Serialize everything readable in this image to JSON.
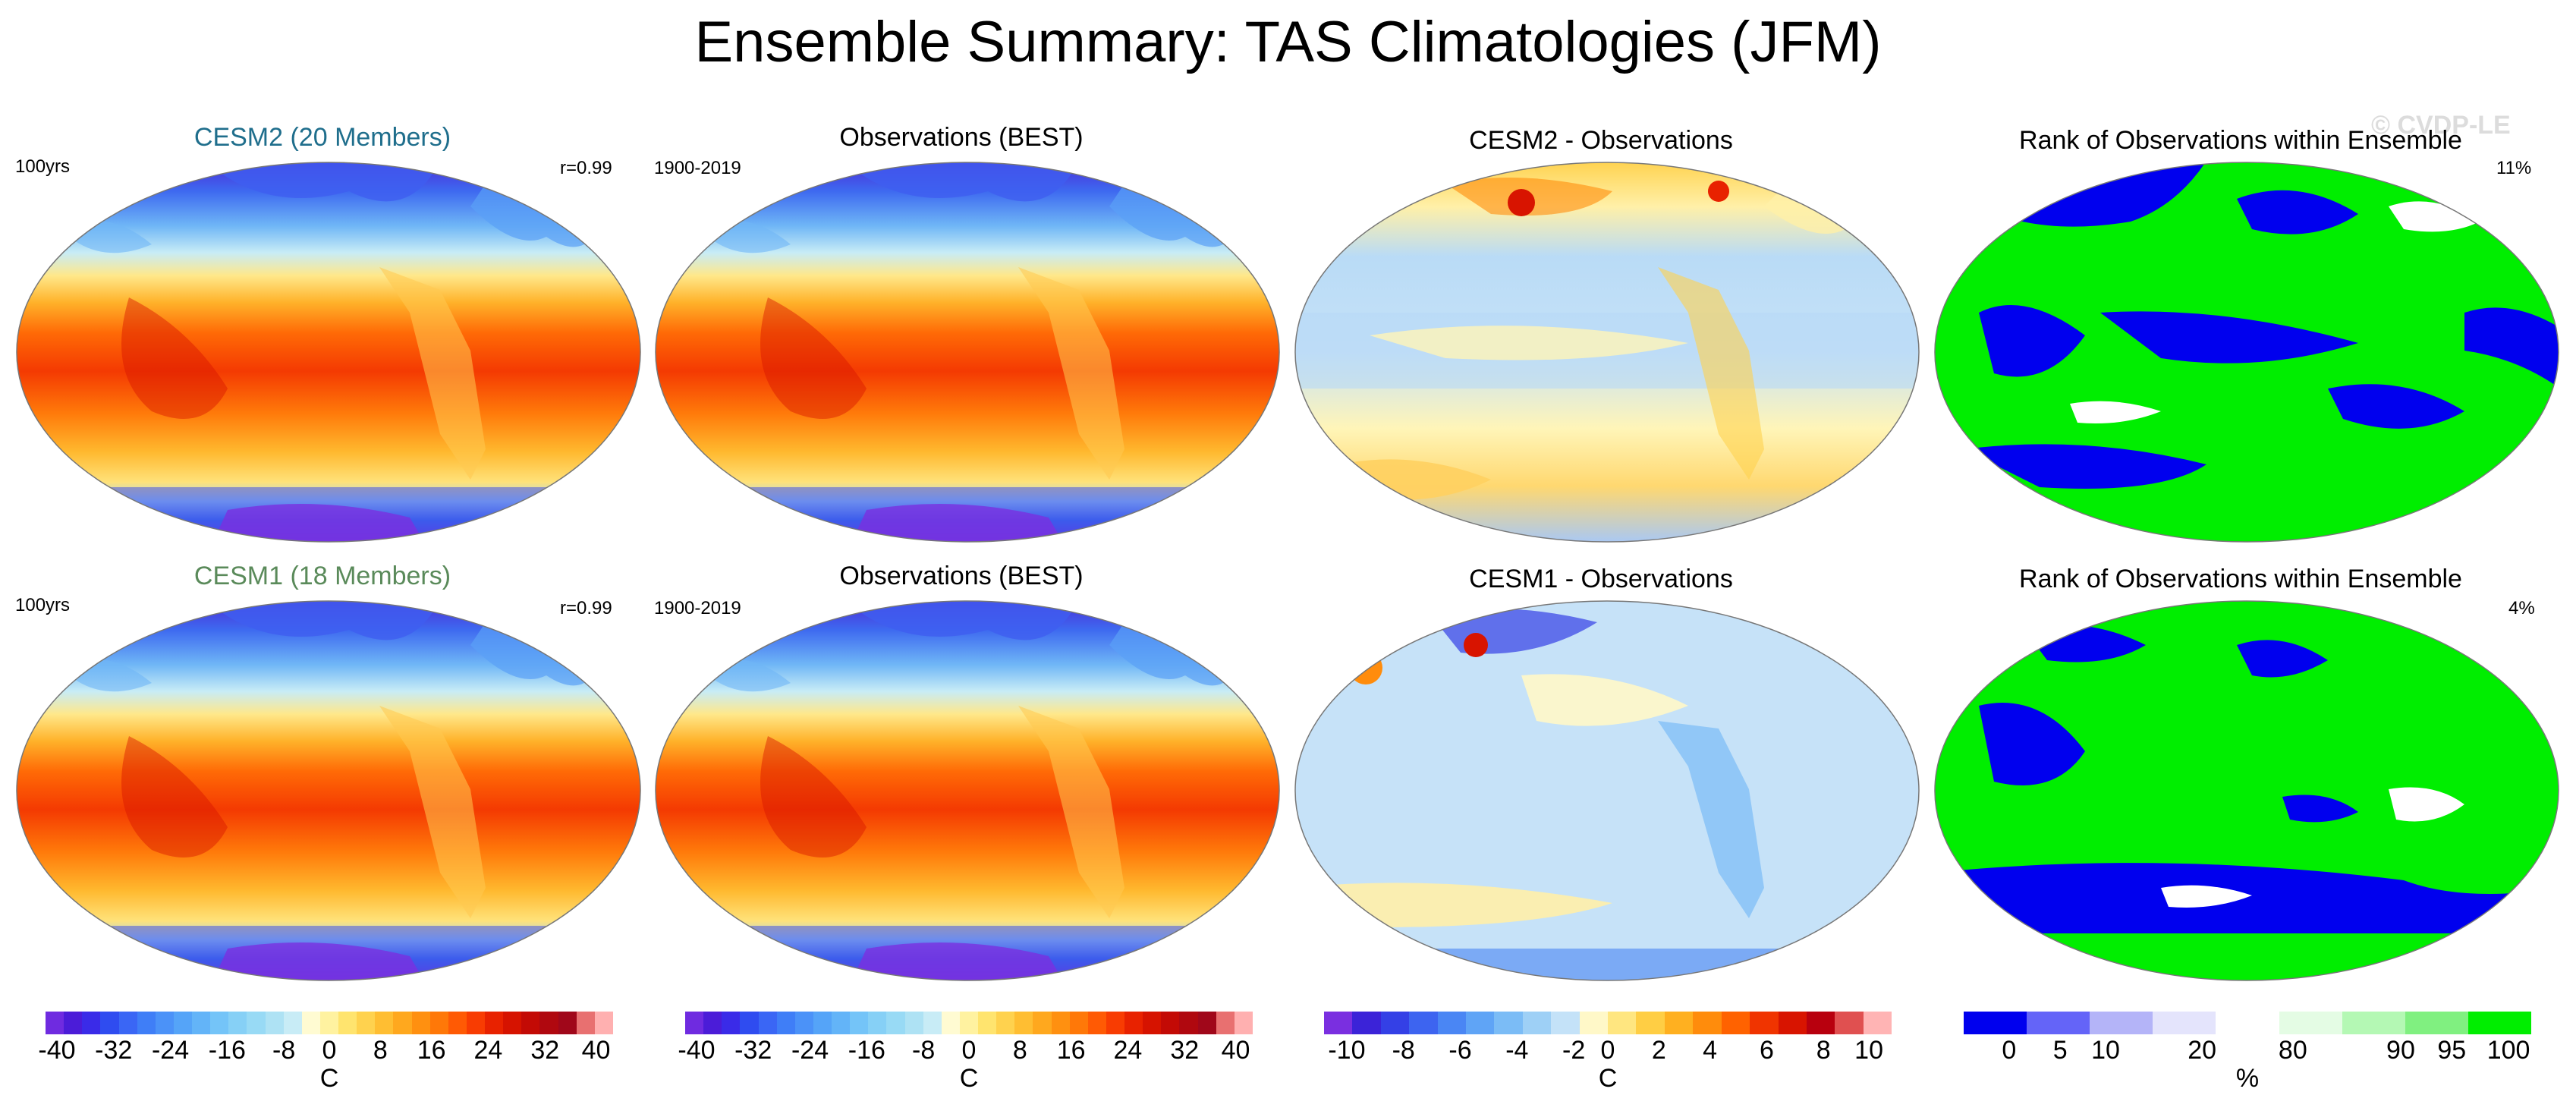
{
  "figure_title": "Ensemble Summary: TAS Climatologies (JFM)",
  "watermark": "© CVDP-LE",
  "rows": [
    {
      "model": {
        "title": "CESM2 (20 Members)",
        "title_color": "#1f6e8c",
        "left_label": "100yrs",
        "right_label": "r=0.99"
      },
      "obs": {
        "title": "Observations (BEST)",
        "left_label": "1900-2019"
      },
      "diff": {
        "title": "CESM2 - Observations"
      },
      "rank": {
        "title": "Rank of Observations within Ensemble",
        "right_label": "11%"
      }
    },
    {
      "model": {
        "title": "CESM1 (18 Members)",
        "title_color": "#5a8a5a",
        "left_label": "100yrs",
        "right_label": "r=0.99"
      },
      "obs": {
        "title": "Observations (BEST)",
        "left_label": "1900-2019"
      },
      "diff": {
        "title": "CESM1 - Observations"
      },
      "rank": {
        "title": "Rank of Observations within Ensemble",
        "right_label": "4%"
      }
    }
  ],
  "colorbars": [
    {
      "unit": "C",
      "tick_labels": [
        "-40",
        "-32",
        "-24",
        "-16",
        "-8",
        "0",
        "8",
        "16",
        "24",
        "32",
        "40"
      ],
      "colors": [
        "#6f2be0",
        "#4b1cd8",
        "#3a2be8",
        "#2f4cf0",
        "#3a66f5",
        "#3f7ef7",
        "#4b92f8",
        "#55a4f8",
        "#63b4f8",
        "#74c4f8",
        "#86d0f6",
        "#98daf5",
        "#aee2f4",
        "#c8ecf6",
        "#fffbd2",
        "#fff2a0",
        "#ffe46e",
        "#ffd24e",
        "#ffbe32",
        "#ffa81e",
        "#ff9010",
        "#ff7808",
        "#ff5a04",
        "#f83c02",
        "#e82200",
        "#d61300",
        "#c30a05",
        "#b0080f",
        "#a0071a",
        "#e87070",
        "#ffb0b0"
      ]
    },
    {
      "unit": "C",
      "tick_labels": [
        "-40",
        "-32",
        "-24",
        "-16",
        "-8",
        "0",
        "8",
        "16",
        "24",
        "32",
        "40"
      ],
      "colors": [
        "#6f2be0",
        "#4b1cd8",
        "#3a2be8",
        "#2f4cf0",
        "#3a66f5",
        "#3f7ef7",
        "#4b92f8",
        "#55a4f8",
        "#63b4f8",
        "#74c4f8",
        "#86d0f6",
        "#98daf5",
        "#aee2f4",
        "#c8ecf6",
        "#fffbd2",
        "#fff2a0",
        "#ffe46e",
        "#ffd24e",
        "#ffbe32",
        "#ffa81e",
        "#ff9010",
        "#ff7808",
        "#ff5a04",
        "#f83c02",
        "#e82200",
        "#d61300",
        "#c30a05",
        "#b0080f",
        "#a0071a",
        "#e87070",
        "#ffb0b0"
      ]
    },
    {
      "unit": "C",
      "tick_labels": [
        "-10",
        "-8",
        "-6",
        "-4",
        "-2",
        "0",
        "2",
        "4",
        "6",
        "8",
        "10"
      ],
      "colors": [
        "#7a2fe0",
        "#3b23d8",
        "#3440e6",
        "#3d64f0",
        "#4a86f4",
        "#5fa4f6",
        "#7bbcf6",
        "#9ed0f6",
        "#c4e2f8",
        "#fff8c8",
        "#ffe680",
        "#ffce44",
        "#ffb020",
        "#ff8c0c",
        "#ff6200",
        "#f03400",
        "#d81400",
        "#b8000e",
        "#e05050",
        "#ffb4b4"
      ]
    },
    {
      "unit": "%",
      "tick_labels": [
        "0",
        "5",
        "10",
        "20",
        "80",
        "90",
        "95",
        "100"
      ],
      "colors": [
        "#0000ee",
        "#6464f8",
        "#b4b4f8",
        "#e4e4fc",
        "#ffffff",
        "#e4fce4",
        "#b4f8b4",
        "#80f080",
        "#00ee00"
      ]
    }
  ],
  "chart_data": [
    {
      "type": "heatmap",
      "panel": "row1-model",
      "title": "CESM2 (20 Members)",
      "field": "TAS climatology JFM",
      "units": "C",
      "range": [
        -40,
        40
      ],
      "annotations": [
        "100yrs",
        "r=0.99"
      ]
    },
    {
      "type": "heatmap",
      "panel": "row1-obs",
      "title": "Observations (BEST)",
      "field": "TAS climatology JFM",
      "units": "C",
      "range": [
        -40,
        40
      ],
      "annotations": [
        "1900-2019"
      ]
    },
    {
      "type": "heatmap",
      "panel": "row1-diff",
      "title": "CESM2 - Observations",
      "units": "C",
      "range": [
        -10,
        10
      ]
    },
    {
      "type": "heatmap",
      "panel": "row1-rank",
      "title": "Rank of Observations within Ensemble",
      "units": "%",
      "annotations": [
        "11%"
      ]
    },
    {
      "type": "heatmap",
      "panel": "row2-model",
      "title": "CESM1 (18 Members)",
      "field": "TAS climatology JFM",
      "units": "C",
      "range": [
        -40,
        40
      ],
      "annotations": [
        "100yrs",
        "r=0.99"
      ]
    },
    {
      "type": "heatmap",
      "panel": "row2-obs",
      "title": "Observations (BEST)",
      "field": "TAS climatology JFM",
      "units": "C",
      "range": [
        -40,
        40
      ],
      "annotations": [
        "1900-2019"
      ]
    },
    {
      "type": "heatmap",
      "panel": "row2-diff",
      "title": "CESM1 - Observations",
      "units": "C",
      "range": [
        -10,
        10
      ]
    },
    {
      "type": "heatmap",
      "panel": "row2-rank",
      "title": "Rank of Observations within Ensemble",
      "units": "%",
      "annotations": [
        "4%"
      ]
    }
  ]
}
